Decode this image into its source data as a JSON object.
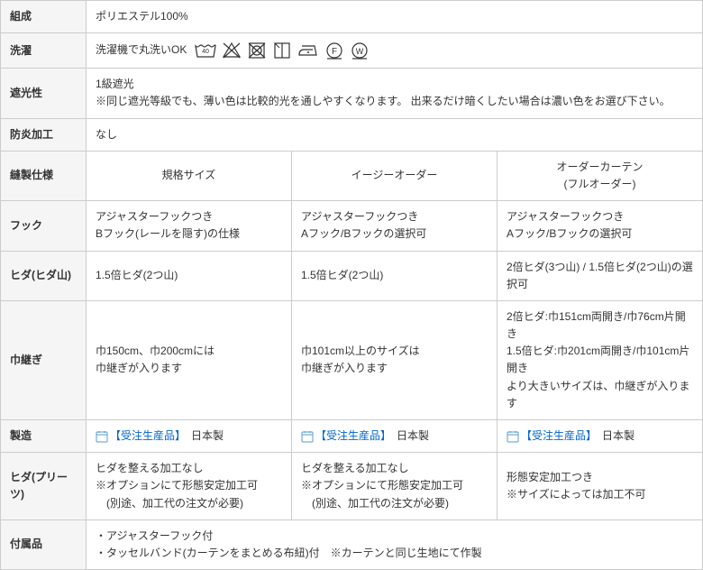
{
  "rows": {
    "composition": {
      "label": "組成",
      "value": "ポリエステル100%"
    },
    "washing": {
      "label": "洗濯",
      "prefix": "洗濯機で丸洗いOK"
    },
    "shading": {
      "label": "遮光性",
      "line1": "1級遮光",
      "line2": "※同じ遮光等級でも、薄い色は比較的光を通しやすくなります。 出来るだけ暗くしたい場合は濃い色をお選び下さい。"
    },
    "flameproof": {
      "label": "防炎加工",
      "value": "なし"
    },
    "sewing": {
      "label": "縫製仕様",
      "col1": "規格サイズ",
      "col2": "イージーオーダー",
      "col3": "オーダーカーテン\n(フルオーダー)"
    },
    "hook": {
      "label": "フック",
      "c1": "アジャスターフックつき\nBフック(レールを隠す)の仕様",
      "c2": "アジャスターフックつき\nAフック/Bフックの選択可",
      "c3": "アジャスターフックつき\nAフック/Bフックの選択可"
    },
    "hida": {
      "label": "ヒダ(ヒダ山)",
      "c1": "1.5倍ヒダ(2つ山)",
      "c2": "1.5倍ヒダ(2つ山)",
      "c3": "2倍ヒダ(3つ山) / 1.5倍ヒダ(2つ山)の選択可"
    },
    "join": {
      "label": "巾継ぎ",
      "c1": "巾150cm、巾200cmには\n巾継ぎが入ります",
      "c2": "巾101cm以上のサイズは\n巾継ぎが入ります",
      "c3": "2倍ヒダ:巾151cm両開き/巾76cm片開き\n1.5倍ヒダ:巾201cm両開き/巾101cm片開き\nより大きいサイズは、巾継ぎが入ります"
    },
    "mfg": {
      "label": "製造",
      "link": "【受注生産品】",
      "jp": "日本製"
    },
    "pleat": {
      "label": "ヒダ(プリーツ)",
      "c1": "ヒダを整える加工なし\n※オプションにて形態安定加工可\n　(別途、加工代の注文が必要)",
      "c2": "ヒダを整える加工なし\n※オプションにて形態安定加工可\n　(別途、加工代の注文が必要)",
      "c3": "形態安定加工つき\n※サイズによっては加工不可"
    },
    "accessories": {
      "label": "付属品",
      "value": "・アジャスターフック付\n・タッセルバンド(カーテンをまとめる布紐)付　※カーテンと同じ生地にて作製"
    }
  },
  "colors": {
    "link": "#0066cc",
    "border": "#cccccc",
    "header_bg": "#f5f5f5"
  }
}
